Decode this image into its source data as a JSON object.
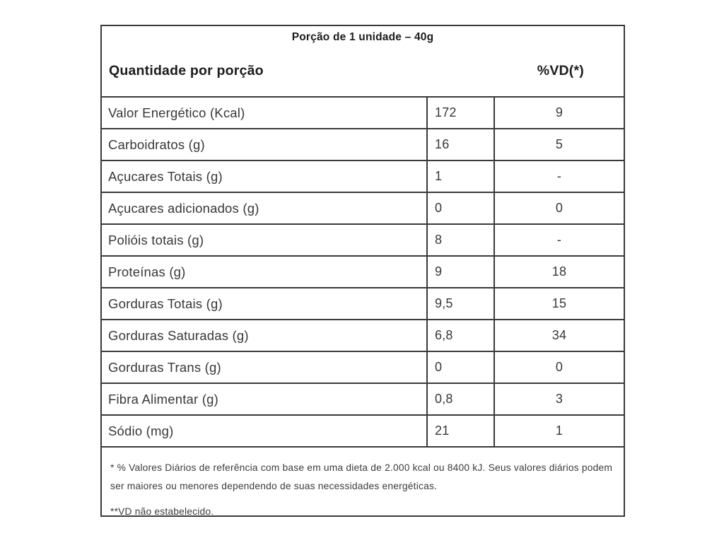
{
  "label": {
    "serving_title": "Porção de 1 unidade – 40g",
    "header": {
      "quantity": "Quantidade por porção",
      "vd": "%VD(*)"
    },
    "rows": [
      {
        "label": "Valor Energético (Kcal)",
        "amount": "172",
        "vd": "9"
      },
      {
        "label": "Carboidratos (g)",
        "amount": "16",
        "vd": "5"
      },
      {
        "label": "Açucares Totais (g)",
        "amount": "1",
        "vd": "-"
      },
      {
        "label": "Açucares adicionados (g)",
        "amount": "0",
        "vd": "0"
      },
      {
        "label": "Polióis totais (g)",
        "amount": "8",
        "vd": "-"
      },
      {
        "label": "Proteínas (g)",
        "amount": "9",
        "vd": "18"
      },
      {
        "label": "Gorduras Totais (g)",
        "amount": "9,5",
        "vd": "15"
      },
      {
        "label": "Gorduras Saturadas (g)",
        "amount": "6,8",
        "vd": "34"
      },
      {
        "label": "Gorduras Trans (g)",
        "amount": "0",
        "vd": "0"
      },
      {
        "label": "Fibra Alimentar (g)",
        "amount": "0,8",
        "vd": "3"
      },
      {
        "label": "Sódio (mg)",
        "amount": "21",
        "vd": "1"
      }
    ],
    "footnotes": [
      "* % Valores Diários de referência com base em uma dieta de 2.000 kcal ou 8400 kJ. Seus valores diários podem ser maiores ou menores dependendo de suas necessidades energéticas.",
      "**VD não estabelecido."
    ]
  },
  "colors": {
    "border": "#3a3a3a",
    "text": "#383838",
    "heading_text": "#1c1c1c",
    "background": "#ffffff"
  }
}
